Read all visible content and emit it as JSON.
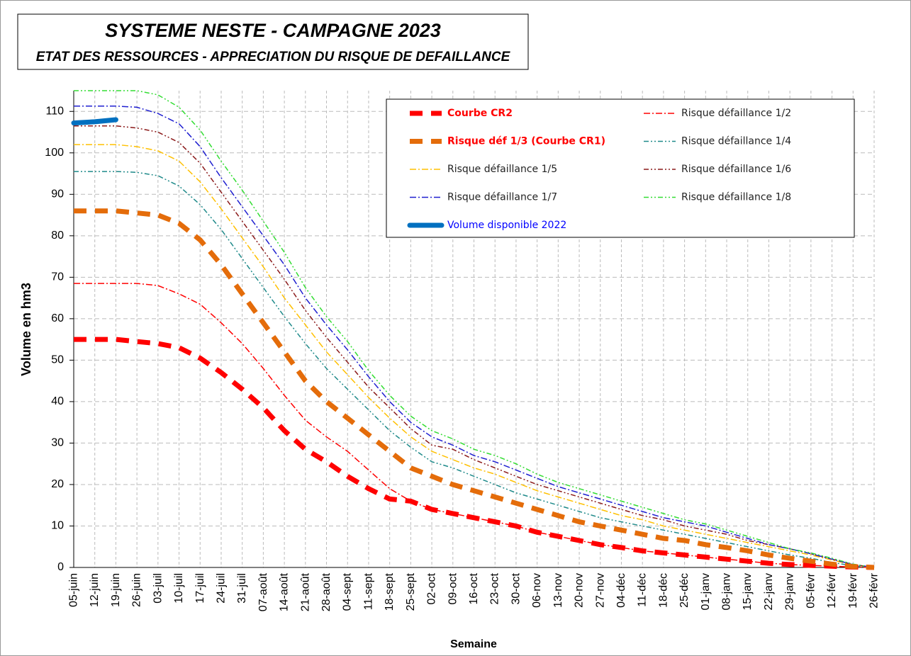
{
  "chart_data": {
    "type": "line",
    "title": "SYSTEME NESTE - CAMPAGNE  2023",
    "subtitle": "ETAT DES RESSOURCES - APPRECIATION DU RISQUE DE DEFAILLANCE",
    "x_label": "Semaine",
    "y_label": "Volume en hm3",
    "categories": [
      "05-juin",
      "12-juin",
      "19-juin",
      "26-juin",
      "03-juil",
      "10-juil",
      "17-juil",
      "24-juil",
      "31-juil",
      "07-août",
      "14-août",
      "21-août",
      "28-août",
      "04-sept",
      "11-sept",
      "18-sept",
      "25-sept",
      "02-oct",
      "09-oct",
      "16-oct",
      "23-oct",
      "30-oct",
      "06-nov",
      "13-nov",
      "20-nov",
      "27-nov",
      "04-déc",
      "11-déc",
      "18-déc",
      "25-déc",
      "01-janv",
      "08-janv",
      "15-janv",
      "22-janv",
      "29-janv",
      "05-févr",
      "12-févr",
      "19-févr",
      "26-févr"
    ],
    "ylim": [
      0,
      115
    ],
    "yticks": [
      0,
      10,
      20,
      30,
      40,
      50,
      60,
      70,
      80,
      90,
      100,
      110
    ],
    "grid": true,
    "legend": "upper right",
    "series": [
      {
        "name": "Courbe CR2",
        "color": "#ff0000",
        "label_color": "#ff0000",
        "style": "thick-dash",
        "values": [
          55,
          55,
          55,
          54.5,
          54,
          53,
          50.5,
          47,
          43,
          38.5,
          33,
          28.5,
          25.5,
          22,
          19,
          16.5,
          16,
          14,
          13,
          12,
          11,
          10,
          8.5,
          7.5,
          6.5,
          5.5,
          4.8,
          4,
          3.5,
          3,
          2.5,
          2,
          1.5,
          1,
          0.7,
          0.5,
          0.3,
          0.1,
          0
        ]
      },
      {
        "name": "Risque défaillance 1/2",
        "color": "#ff0000",
        "style": "dash-dot",
        "values": [
          68.5,
          68.5,
          68.5,
          68.5,
          68,
          66,
          63.5,
          59,
          54,
          48,
          41.5,
          35.5,
          31.5,
          28,
          23.5,
          19,
          16,
          14,
          13,
          12,
          11,
          10,
          8.5,
          7.5,
          6.5,
          5.5,
          4.8,
          4,
          3.5,
          3,
          2.5,
          2,
          1.5,
          1,
          0.7,
          0.5,
          0.3,
          0.1,
          0
        ]
      },
      {
        "name": "Risque déf 1/3 (Courbe CR1)",
        "color": "#e46c0a",
        "label_color": "#ff0000",
        "style": "thick-dash",
        "values": [
          86,
          86,
          86,
          85.5,
          85,
          83,
          79,
          73,
          66,
          59,
          52,
          45,
          40,
          36,
          32,
          28,
          24,
          22,
          20,
          18.5,
          17,
          15.5,
          14,
          12.5,
          11,
          10,
          9,
          8,
          7,
          6.5,
          5.5,
          4.8,
          4,
          3,
          2.2,
          1.5,
          0.8,
          0.2,
          0
        ]
      },
      {
        "name": "Risque défaillance 1/4",
        "color": "#1f8a8a",
        "style": "dash-dot-dot",
        "values": [
          95.5,
          95.5,
          95.5,
          95.3,
          94.5,
          92,
          87.5,
          81.5,
          74.5,
          67.5,
          60.5,
          54,
          48,
          43,
          38,
          33,
          29,
          25.5,
          24,
          22,
          20,
          18,
          16.5,
          15,
          13.5,
          12,
          11,
          10,
          9,
          8,
          7,
          6,
          5,
          4,
          3,
          2.2,
          1.2,
          0.4,
          0
        ]
      },
      {
        "name": "Risque défaillance 1/5",
        "color": "#ffc000",
        "style": "dash-dot",
        "values": [
          102,
          102,
          102,
          101.5,
          100.5,
          98,
          93,
          86.5,
          79.5,
          72.5,
          65,
          58.5,
          52,
          46.5,
          41,
          36,
          31.5,
          28,
          26,
          24,
          22.5,
          20.5,
          18.5,
          17,
          15.5,
          14,
          12.5,
          11.5,
          10,
          9,
          8,
          7,
          6,
          5,
          4,
          3,
          1.8,
          0.6,
          0
        ]
      },
      {
        "name": "Risque défaillance 1/6",
        "color": "#8b1a1a",
        "style": "dash-dot-dot",
        "values": [
          106.5,
          106.5,
          106.5,
          106,
          105,
          102.5,
          97.5,
          90.5,
          83.5,
          76.5,
          69.5,
          62,
          55.5,
          49.5,
          43.5,
          38.5,
          33.5,
          29.5,
          28.5,
          26,
          24,
          22,
          20,
          18.5,
          17,
          15.5,
          14,
          12.5,
          11.5,
          10,
          9,
          8,
          6.5,
          5.5,
          4.5,
          3.3,
          2,
          0.7,
          0
        ]
      },
      {
        "name": "Risque défaillance 1/7",
        "color": "#1f1fd0",
        "style": "dash-dot",
        "values": [
          111.3,
          111.3,
          111.3,
          111,
          109.5,
          107,
          101.5,
          94,
          87,
          80,
          73,
          65,
          58.5,
          52.5,
          46,
          40,
          35,
          31.5,
          29.5,
          27,
          25.5,
          23.5,
          21.5,
          19.5,
          18,
          16.5,
          15,
          13.5,
          12,
          11,
          10,
          8.5,
          7,
          5.5,
          4.5,
          3.3,
          2,
          0.7,
          0
        ]
      },
      {
        "name": "Risque défaillance 1/8",
        "color": "#33dd33",
        "style": "dash-dot-dot",
        "values": [
          115,
          115,
          115,
          115,
          114,
          111,
          105.5,
          98,
          91,
          83.5,
          76,
          67.5,
          60.5,
          54.5,
          47.5,
          41.5,
          36.5,
          33,
          31,
          28.5,
          27,
          25,
          22.5,
          20.5,
          19,
          17.5,
          16,
          14.5,
          13,
          11.5,
          10.5,
          9,
          7.5,
          6,
          4.5,
          3.5,
          2.2,
          0.8,
          0
        ]
      },
      {
        "name": "Volume disponible 2022",
        "color": "#0070c0",
        "label_color": "#0000ff",
        "style": "thick-solid",
        "values": [
          107.2,
          107.5,
          108,
          null,
          null,
          null,
          null,
          null,
          null,
          null,
          null,
          null,
          null,
          null,
          null,
          null,
          null,
          null,
          null,
          null,
          null,
          null,
          null,
          null,
          null,
          null,
          null,
          null,
          null,
          null,
          null,
          null,
          null,
          null,
          null,
          null,
          null,
          null,
          null
        ]
      }
    ]
  }
}
